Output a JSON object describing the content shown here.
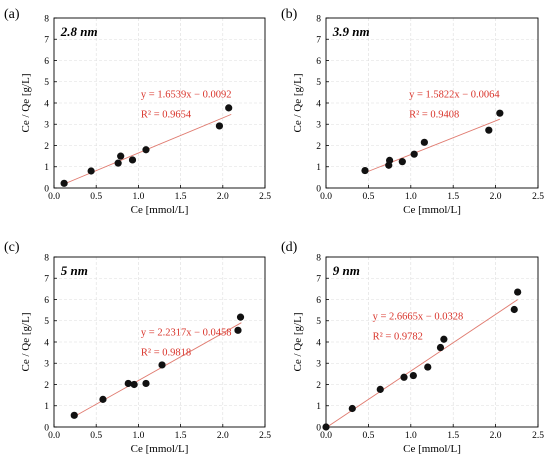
{
  "chart_data": [
    {
      "type": "scatter",
      "panel_label": "(a)",
      "size_label": "2.8 nm",
      "equation": "y = 1.6539x − 0.0092",
      "r2": "R² = 0.9654",
      "xlabel": "Ce [mmol/L]",
      "ylabel": "Ce / Qe [g/L]",
      "xlim": [
        0,
        2.5
      ],
      "ylim": [
        0,
        8
      ],
      "xticks": [
        "0.0",
        "0.5",
        "1.0",
        "1.5",
        "2.0",
        "2.5"
      ],
      "yticks": [
        "0",
        "1",
        "2",
        "3",
        "4",
        "5",
        "6",
        "7",
        "8"
      ],
      "grid": true,
      "fit": {
        "slope": 1.6539,
        "intercept": -0.0092,
        "x_range": [
          0.12,
          2.1
        ]
      },
      "points": [
        [
          0.12,
          0.22
        ],
        [
          0.44,
          0.8
        ],
        [
          0.76,
          1.17
        ],
        [
          0.79,
          1.5
        ],
        [
          0.93,
          1.32
        ],
        [
          1.09,
          1.8
        ],
        [
          1.96,
          2.92
        ],
        [
          2.07,
          3.77
        ]
      ]
    },
    {
      "type": "scatter",
      "panel_label": "(b)",
      "size_label": "3.9 nm",
      "equation": "y = 1.5822x − 0.0064",
      "r2": "R² = 0.9408",
      "xlabel": "Ce [mmol/L]",
      "ylabel": "Ce / Qe [g/L]",
      "xlim": [
        0,
        2.5
      ],
      "ylim": [
        0,
        8
      ],
      "xticks": [
        "0.0",
        "0.5",
        "1.0",
        "1.5",
        "2.0",
        "2.5"
      ],
      "yticks": [
        "0",
        "1",
        "2",
        "3",
        "4",
        "5",
        "6",
        "7",
        "8"
      ],
      "grid": true,
      "fit": {
        "slope": 1.5822,
        "intercept": -0.0064,
        "x_range": [
          0.45,
          2.05
        ]
      },
      "points": [
        [
          0.46,
          0.82
        ],
        [
          0.74,
          1.07
        ],
        [
          0.75,
          1.3
        ],
        [
          0.9,
          1.24
        ],
        [
          1.04,
          1.59
        ],
        [
          1.16,
          2.15
        ],
        [
          1.92,
          2.72
        ],
        [
          2.05,
          3.52
        ]
      ]
    },
    {
      "type": "scatter",
      "panel_label": "(c)",
      "size_label": "5 nm",
      "equation": "y = 2.2317x − 0.0458",
      "r2": "R² = 0.9818",
      "xlabel": "Ce [mmol/L]",
      "ylabel": "Ce / Qe [g/L]",
      "xlim": [
        0,
        2.5
      ],
      "ylim": [
        0,
        8
      ],
      "xticks": [
        "0.0",
        "0.5",
        "1.0",
        "1.5",
        "2.0",
        "2.5"
      ],
      "yticks": [
        "0",
        "1",
        "2",
        "3",
        "4",
        "5",
        "6",
        "7",
        "8"
      ],
      "grid": true,
      "fit": {
        "slope": 2.2317,
        "intercept": -0.0458,
        "x_range": [
          0.22,
          2.22
        ]
      },
      "points": [
        [
          0.24,
          0.55
        ],
        [
          0.58,
          1.3
        ],
        [
          0.88,
          2.05
        ],
        [
          0.95,
          2.0
        ],
        [
          1.09,
          2.05
        ],
        [
          1.28,
          2.92
        ],
        [
          2.18,
          4.55
        ],
        [
          2.21,
          5.17
        ]
      ]
    },
    {
      "type": "scatter",
      "panel_label": "(d)",
      "size_label": "9 nm",
      "equation": "y = 2.6665x − 0.0328",
      "r2": "R² = 0.9782",
      "xlabel": "Ce [mmol/L]",
      "ylabel": "Ce / Qe [g/L]",
      "xlim": [
        0,
        2.5
      ],
      "ylim": [
        0,
        8
      ],
      "xticks": [
        "0.0",
        "0.5",
        "1.0",
        "1.5",
        "2.0",
        "2.5"
      ],
      "yticks": [
        "0",
        "1",
        "2",
        "3",
        "4",
        "5",
        "6",
        "7",
        "8"
      ],
      "grid": true,
      "fit": {
        "slope": 2.6665,
        "intercept": -0.0328,
        "x_range": [
          0.0,
          2.26
        ]
      },
      "points": [
        [
          0.0,
          0.0
        ],
        [
          0.31,
          0.87
        ],
        [
          0.64,
          1.77
        ],
        [
          0.92,
          2.34
        ],
        [
          1.03,
          2.42
        ],
        [
          1.2,
          2.82
        ],
        [
          1.35,
          3.74
        ],
        [
          1.39,
          4.13
        ],
        [
          2.22,
          5.53
        ],
        [
          2.26,
          6.35
        ]
      ]
    }
  ]
}
